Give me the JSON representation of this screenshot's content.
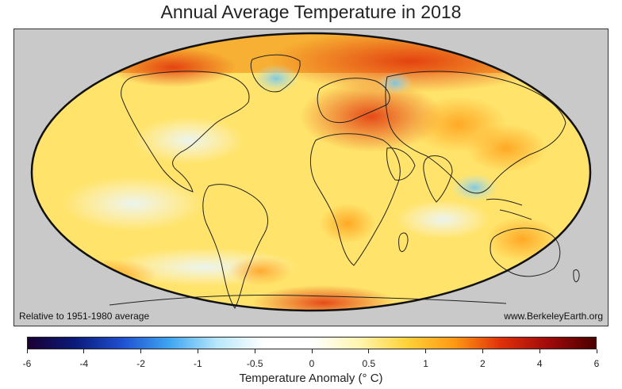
{
  "title": "Annual Average Temperature in 2018",
  "map": {
    "projection": "mollweide",
    "note_left": "Relative to 1951-1980 average",
    "note_right": "www.BerkeleyEarth.org"
  },
  "colorbar": {
    "label": "Temperature Anomaly (° C)",
    "ticks": [
      "-6",
      "-4",
      "-2",
      "-1",
      "-0.5",
      "0",
      "0.5",
      "1",
      "2",
      "4",
      "6"
    ],
    "colors": {
      "cold_extreme": "#1a0033",
      "cold": "#1f4fd0",
      "neutral": "#ffffff",
      "warm": "#ffd23a",
      "hot": "#e0300a",
      "hot_extreme": "#4a0000"
    }
  }
}
